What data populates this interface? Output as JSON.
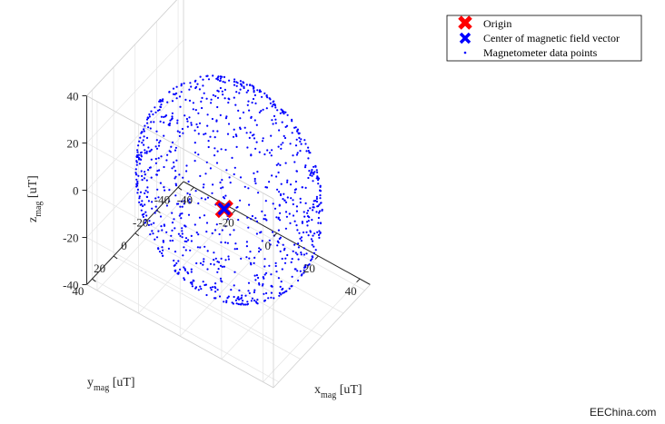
{
  "chart_data": {
    "type": "scatter",
    "subtype": "3d-scatter",
    "title": "",
    "axes": {
      "x": {
        "label": "x",
        "label_sub": "mag",
        "unit": " [uT]",
        "ticks": [
          -40,
          -20,
          0,
          20,
          40
        ],
        "range": [
          -45,
          45
        ]
      },
      "y": {
        "label": "y",
        "label_sub": "mag",
        "unit": " [uT]",
        "ticks": [
          -40,
          -20,
          0,
          20,
          40
        ],
        "range": [
          -45,
          45
        ]
      },
      "z": {
        "label": "z",
        "label_sub": "mag",
        "unit": " [uT]",
        "ticks": [
          -40,
          -20,
          0,
          20,
          40
        ],
        "range": [
          -40,
          40
        ]
      }
    },
    "grid": true,
    "legend_position": "top-right",
    "series": [
      {
        "name": "Origin",
        "marker": "x-large",
        "color": "#ff0000",
        "points": [
          [
            0,
            0,
            0
          ]
        ]
      },
      {
        "name": "Center of magnetic field vector",
        "marker": "x-large",
        "color": "#0000ff",
        "points": [
          [
            0.5,
            0.5,
            0.5
          ]
        ]
      },
      {
        "name": "Magnetometer data points",
        "marker": "dot",
        "color": "#0000ff",
        "distribution": "uniform sphere surface",
        "center": [
          0.5,
          0.5,
          0.5
        ],
        "radius": 40,
        "count": 1000
      }
    ]
  },
  "watermark": "EEChina.com"
}
